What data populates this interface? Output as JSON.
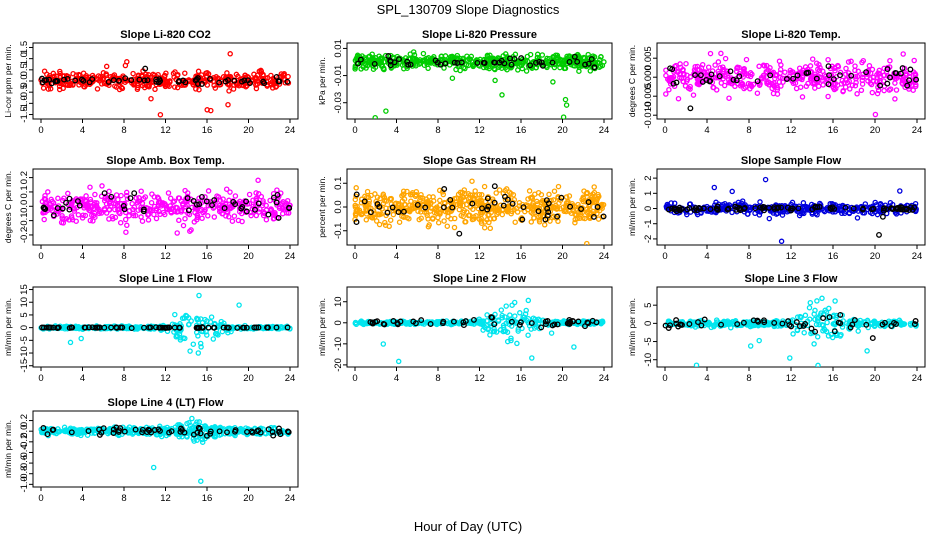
{
  "figure": {
    "title": "SPL_130709  Slope Diagnostics",
    "xlabel": "Hour of Day (UTC)"
  },
  "chart_data": [
    {
      "type": "scatter",
      "title": "Slope Li-820 CO2",
      "ylabel": "Li-cor ppm per min.",
      "xlim": [
        0,
        24
      ],
      "xticks": [
        0,
        4,
        8,
        12,
        16,
        20,
        24
      ],
      "ylim": [
        -1.7,
        1.7
      ],
      "yticks": [
        -1.5,
        -1.0,
        -0.5,
        0.0,
        0.5,
        1.0,
        1.5
      ],
      "ytick_labels": [
        "-1.5",
        "-1.0",
        "-0.5",
        "0.0",
        "0.5",
        "1.0",
        "1.5"
      ],
      "series": [
        {
          "color": "#ff0000",
          "n": 430,
          "spread": 0.25
        },
        {
          "color": "#000000",
          "n": 55,
          "spread": 0.1
        }
      ]
    },
    {
      "type": "scatter",
      "title": "Slope Li-820 Pressure",
      "ylabel": "kPa per min.",
      "xlim": [
        0,
        24
      ],
      "xticks": [
        0,
        4,
        8,
        12,
        16,
        20,
        24
      ],
      "ylim": [
        -0.042,
        0.014
      ],
      "yticks": [
        -0.03,
        -0.01,
        0.01
      ],
      "ytick_labels": [
        "-0.03",
        "-0.01",
        "0.01"
      ],
      "series": [
        {
          "color": "#00cc00",
          "n": 480,
          "spread": 0.004
        },
        {
          "color": "#000000",
          "n": 45,
          "spread": 0.003
        }
      ]
    },
    {
      "type": "scatter",
      "title": "Slope Li-820 Temp.",
      "ylabel": "degrees C per min.",
      "xlim": [
        0,
        24
      ],
      "xticks": [
        0,
        4,
        8,
        12,
        16,
        20,
        24
      ],
      "ylim": [
        -0.011,
        0.009
      ],
      "yticks": [
        -0.01,
        -0.005,
        0.0,
        0.005
      ],
      "ytick_labels": [
        "-0.010",
        "-0.005",
        "0.000",
        "0.005"
      ],
      "series": [
        {
          "color": "#ff00ff",
          "n": 420,
          "spread": 0.003
        },
        {
          "color": "#000000",
          "n": 45,
          "spread": 0.002
        }
      ]
    },
    {
      "type": "scatter",
      "title": "Slope Amb. Box Temp.",
      "ylabel": "degrees C per min.",
      "xlim": [
        0,
        24
      ],
      "xticks": [
        0,
        4,
        8,
        12,
        16,
        20,
        24
      ],
      "ylim": [
        -0.27,
        0.26
      ],
      "yticks": [
        -0.2,
        -0.1,
        0.0,
        0.1,
        0.2
      ],
      "ytick_labels": [
        "-0.2",
        "-0.1",
        "0.0",
        "0.1",
        "0.2"
      ],
      "series": [
        {
          "color": "#ff00ff",
          "n": 430,
          "spread": 0.07
        },
        {
          "color": "#000000",
          "n": 45,
          "spread": 0.06
        }
      ]
    },
    {
      "type": "scatter",
      "title": "Slope Gas Stream RH",
      "ylabel": "percent per min.",
      "xlim": [
        0,
        24
      ],
      "xticks": [
        0,
        4,
        8,
        12,
        16,
        20,
        24
      ],
      "ylim": [
        -0.16,
        0.16
      ],
      "yticks": [
        -0.1,
        0.0,
        0.1
      ],
      "ytick_labels": [
        "-0.1",
        "0.0",
        "0.1"
      ],
      "series": [
        {
          "color": "#ffa500",
          "n": 560,
          "spread": 0.05
        },
        {
          "color": "#000000",
          "n": 45,
          "spread": 0.04
        }
      ]
    },
    {
      "type": "scatter",
      "title": "Slope Sample Flow",
      "ylabel": "ml/min per min.",
      "xlim": [
        0,
        24
      ],
      "xticks": [
        0,
        4,
        8,
        12,
        16,
        20,
        24
      ],
      "ylim": [
        -2.4,
        2.6
      ],
      "yticks": [
        -2,
        -1,
        0,
        1,
        2
      ],
      "ytick_labels": [
        "-2",
        "-1",
        "0",
        "1",
        "2"
      ],
      "series": [
        {
          "color": "#0000dd",
          "n": 360,
          "spread": 0.25
        },
        {
          "color": "#000000",
          "n": 90,
          "spread": 0.1
        }
      ]
    },
    {
      "type": "scatter",
      "title": "Slope Line 1 Flow",
      "ylabel": "ml/min per min.",
      "xlim": [
        0,
        24
      ],
      "xticks": [
        0,
        4,
        8,
        12,
        16,
        20,
        24
      ],
      "ylim": [
        -15.5,
        16
      ],
      "yticks": [
        -15,
        -10,
        -5,
        0,
        5,
        10,
        15
      ],
      "ytick_labels": [
        "-15",
        "-10",
        "-5",
        "0",
        "5",
        "10",
        "15"
      ],
      "series": [
        {
          "color": "#00e5ee",
          "n": 380,
          "spread": 0.4,
          "burst": 6
        },
        {
          "color": "#000000",
          "n": 70,
          "spread": 0.1
        }
      ]
    },
    {
      "type": "scatter",
      "title": "Slope Line 2 Flow",
      "ylabel": "ml/min per min.",
      "xlim": [
        0,
        24
      ],
      "xticks": [
        0,
        4,
        8,
        12,
        16,
        20,
        24
      ],
      "ylim": [
        -21,
        17
      ],
      "yticks": [
        -20,
        -10,
        0,
        10
      ],
      "ytick_labels": [
        "-20",
        "-10",
        "0",
        "10"
      ],
      "series": [
        {
          "color": "#00e5ee",
          "n": 380,
          "spread": 0.6,
          "burst": 7
        },
        {
          "color": "#000000",
          "n": 50,
          "spread": 1.0,
          "burst": 3
        }
      ]
    },
    {
      "type": "scatter",
      "title": "Slope Line 3 Flow",
      "ylabel": "ml/min per min.",
      "xlim": [
        0,
        24
      ],
      "xticks": [
        0,
        4,
        8,
        12,
        16,
        20,
        24
      ],
      "ylim": [
        -12,
        10
      ],
      "yticks": [
        -10,
        -5,
        0,
        5
      ],
      "ytick_labels": [
        "-10",
        "-5",
        "0",
        "5"
      ],
      "series": [
        {
          "color": "#00e5ee",
          "n": 380,
          "spread": 0.6,
          "burst": 4
        },
        {
          "color": "#000000",
          "n": 50,
          "spread": 0.8,
          "burst": 2.5
        }
      ]
    },
    {
      "type": "scatter",
      "title": "Slope Line 4 (LT) Flow",
      "ylabel": "ml/min per min.",
      "xlim": [
        0,
        24
      ],
      "xticks": [
        0,
        4,
        8,
        12,
        16,
        20,
        24
      ],
      "ylim": [
        -1.05,
        0.38
      ],
      "yticks": [
        -1.0,
        -0.8,
        -0.6,
        -0.4,
        -0.2,
        0.0,
        0.2
      ],
      "ytick_labels": [
        "-1.0",
        "-0.8",
        "-0.6",
        "-0.4",
        "-0.2",
        "0.0",
        "0.2"
      ],
      "series": [
        {
          "color": "#00e5ee",
          "n": 420,
          "spread": 0.05,
          "burst": 0.09
        },
        {
          "color": "#000000",
          "n": 60,
          "spread": 0.04,
          "burst": 0.05
        }
      ]
    }
  ]
}
